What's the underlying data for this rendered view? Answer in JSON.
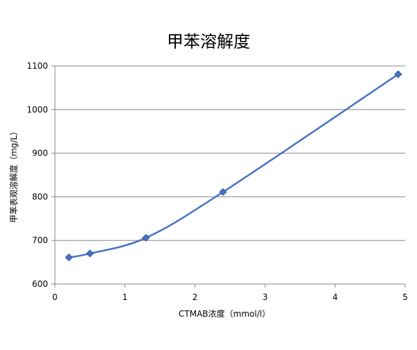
{
  "chart_data": {
    "type": "line",
    "title": "甲苯溶解度",
    "xlabel": "CTMAB浓度（mmol/l）",
    "ylabel": "甲苯表观溶解度（mg/L）",
    "xlim": [
      0,
      5
    ],
    "ylim": [
      600,
      1100
    ],
    "xticks": [
      0,
      1,
      2,
      3,
      4,
      5
    ],
    "yticks": [
      600,
      700,
      800,
      900,
      1000,
      1100
    ],
    "grid": true,
    "legend": "none",
    "line_color": "#4472C4",
    "marker": "diamond",
    "series": [
      {
        "x": [
          0.2,
          0.5,
          1.3,
          2.4,
          4.9
        ],
        "y": [
          661,
          670,
          706,
          811,
          1081
        ]
      }
    ]
  }
}
